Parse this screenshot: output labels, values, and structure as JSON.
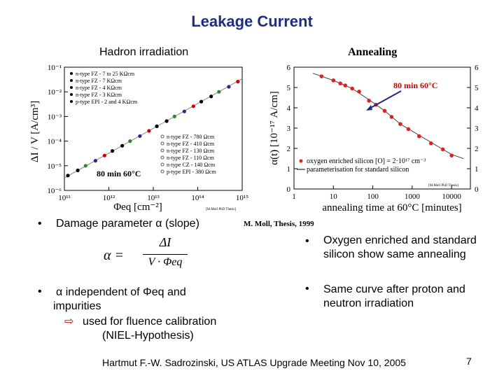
{
  "slide": {
    "title": "Leakage Current",
    "left_heading": "Hadron irradiation",
    "right_heading": "Annealing",
    "thesis_ref": "M. Moll, Thesis, 1999",
    "bullet_1": "Damage parameter α (slope)",
    "bullet_2_line1": "α independent of Φeq and",
    "bullet_2_line2": "impurities",
    "bullet_2_sub1": "used for fluence calibration",
    "bullet_2_sub2": "(NIEL-Hypothesis)",
    "right_bullet_1": "Oxygen enriched and standard silicon show same annealing",
    "right_bullet_2": "Same curve after proton and neutron irradiation",
    "footer": "Hartmut F.-W. Sadrozinski, US ATLAS Upgrade Meeting Nov 10, 2005",
    "page_number": "7",
    "bullet_char": "•",
    "arrow_char": "⇨",
    "formula": {
      "lhs": "α =",
      "numerator": "ΔI",
      "denominator": "V · Φeq"
    }
  },
  "chart_data": [
    {
      "type": "scatter",
      "scale": "log-log",
      "ylabel": "ΔI / V  [A/cm³]",
      "xlabel": "Φeq [cm⁻²]",
      "y_ticks": [
        "10⁻⁶",
        "10⁻⁵",
        "10⁻⁴",
        "10⁻³",
        "10⁻²",
        "10⁻¹"
      ],
      "x_ticks": [
        "10¹¹",
        "10¹²",
        "10¹³",
        "10¹⁴",
        "10¹⁵"
      ],
      "xlim": [
        100000000000.0,
        1000000000000000.0
      ],
      "ylim": [
        1e-06,
        0.1
      ],
      "annotation": "80 min 60°C",
      "small_note": "[M.Moll PhD Thesis]",
      "legend_top": [
        "n-type FZ - 7 to 25 KΩcm",
        "n-type FZ - 7 KΩcm",
        "n-type FZ - 4 KΩcm",
        "n-type FZ - 3 KΩcm",
        "p-type EPI - 2 and 4 KΩcm"
      ],
      "legend_bottom": [
        "n-type FZ - 780 Ωcm",
        "n-type FZ - 410 Ωcm",
        "n-type FZ - 130 Ωcm",
        "n-type FZ - 110 Ωcm",
        "n-type CZ - 140 Ωcm",
        "p-type EPI - 380 Ωcm"
      ],
      "series": [
        {
          "points": [
            [
              120000000000.0,
              4e-06
            ],
            [
              200000000000.0,
              6.5e-06
            ],
            [
              300000000000.0,
              1e-05
            ],
            [
              500000000000.0,
              1.6e-05
            ],
            [
              800000000000.0,
              2.6e-05
            ],
            [
              1200000000000.0,
              4e-05
            ],
            [
              2000000000000.0,
              6.5e-05
            ],
            [
              3000000000000.0,
              0.0001
            ],
            [
              5000000000000.0,
              0.00016
            ],
            [
              8000000000000.0,
              0.00026
            ],
            [
              12000000000000.0,
              0.0004
            ],
            [
              20000000000000.0,
              0.00065
            ],
            [
              30000000000000.0,
              0.001
            ],
            [
              50000000000000.0,
              0.0016
            ],
            [
              80000000000000.0,
              0.0026
            ],
            [
              120000000000000.0,
              0.004
            ],
            [
              200000000000000.0,
              0.0065
            ],
            [
              300000000000000.0,
              0.01
            ],
            [
              500000000000000.0,
              0.016
            ],
            [
              800000000000000.0,
              0.026
            ]
          ]
        }
      ],
      "fit_line": {
        "x": [
          100000000000.0,
          1000000000000000.0
        ],
        "y": [
          3.2e-06,
          0.034
        ]
      }
    },
    {
      "type": "scatter",
      "scale": "log-x",
      "ylabel": "α(t) [10⁻¹⁷ A/cm]",
      "xlabel": "annealing time at 60°C [minutes]",
      "x_ticks": [
        "1",
        "10",
        "100",
        "1000",
        "10000"
      ],
      "y_ticks": [
        "0",
        "1",
        "2",
        "3",
        "4",
        "5",
        "6"
      ],
      "xlim": [
        1,
        30000
      ],
      "ylim": [
        0,
        6
      ],
      "annotation": "80 min 60°C",
      "small_note": "[M.Moll PhD Thesis]",
      "legend": [
        "oxygen enriched silicon [O] = 2·10¹⁷ cm⁻³",
        "parameterisation for standard silicon"
      ],
      "series": [
        {
          "name": "oxygen enriched silicon [O] = 2·10¹⁷ cm⁻³",
          "points": [
            [
              5,
              5.55
            ],
            [
              10,
              5.35
            ],
            [
              15,
              5.2
            ],
            [
              20,
              5.1
            ],
            [
              30,
              4.95
            ],
            [
              45,
              4.8
            ],
            [
              80,
              4.35
            ],
            [
              120,
              4.15
            ],
            [
              200,
              3.85
            ],
            [
              300,
              3.55
            ],
            [
              500,
              3.2
            ],
            [
              800,
              2.95
            ],
            [
              1500,
              2.6
            ],
            [
              3000,
              2.25
            ],
            [
              6000,
              1.95
            ],
            [
              10000,
              1.65
            ]
          ]
        }
      ],
      "fit_line": {
        "points": [
          [
            3,
            5.7
          ],
          [
            10,
            5.35
          ],
          [
            30,
            4.95
          ],
          [
            80,
            4.4
          ],
          [
            200,
            3.85
          ],
          [
            500,
            3.2
          ],
          [
            1000,
            2.85
          ],
          [
            3000,
            2.3
          ],
          [
            10000,
            1.7
          ],
          [
            20000,
            1.5
          ]
        ]
      }
    }
  ]
}
